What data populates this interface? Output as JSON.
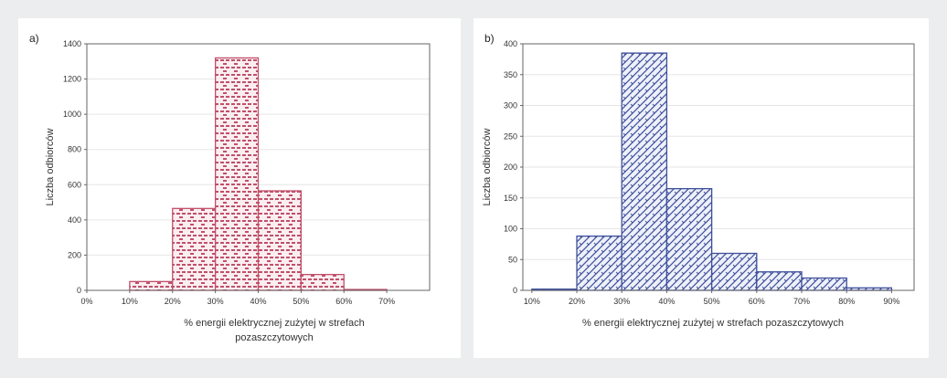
{
  "colors": {
    "background": "#ecedef",
    "pink_series": "#c0506a",
    "blue_series": "#3d4f9a"
  },
  "chart_data": [
    {
      "panel_label": "a)",
      "type": "bar",
      "categories": [
        "0-10%",
        "10-20%",
        "20-30%",
        "30-40%",
        "40-50%",
        "50-60%",
        "60-70%"
      ],
      "x_bins": [
        [
          0,
          10
        ],
        [
          10,
          20
        ],
        [
          20,
          30
        ],
        [
          30,
          40
        ],
        [
          40,
          50
        ],
        [
          50,
          60
        ],
        [
          60,
          70
        ]
      ],
      "values": [
        0,
        50,
        465,
        1320,
        565,
        90,
        5
      ],
      "xlabel": "% energii elektrycznej zużytej w strefach",
      "xlabel_line2": "pozaszczytowych",
      "ylabel": "Liczba odbiorców",
      "ylim": [
        0,
        1400
      ],
      "yticks": [
        0,
        200,
        400,
        600,
        800,
        1000,
        1200,
        1400
      ],
      "xticks": [
        0,
        10,
        20,
        30,
        40,
        50,
        60,
        70
      ],
      "xtick_labels": [
        "0%",
        "10%",
        "20%",
        "30%",
        "40%",
        "50%",
        "60%",
        "70%"
      ],
      "xlim": [
        0,
        80
      ],
      "grid": true,
      "color": "pink_series",
      "pattern": "bricks"
    },
    {
      "panel_label": "b)",
      "type": "bar",
      "categories": [
        "10-20%",
        "20-30%",
        "30-40%",
        "40-50%",
        "50-60%",
        "60-70%",
        "70-80%",
        "80-90%"
      ],
      "x_bins": [
        [
          10,
          20
        ],
        [
          20,
          30
        ],
        [
          30,
          40
        ],
        [
          40,
          50
        ],
        [
          50,
          60
        ],
        [
          60,
          70
        ],
        [
          70,
          80
        ],
        [
          80,
          90
        ]
      ],
      "values": [
        2,
        88,
        385,
        165,
        60,
        30,
        20,
        4
      ],
      "xlabel": "% energii elektrycznej zużytej w strefach pozaszczytowych",
      "xlabel_line2": "",
      "ylabel": "Liczba odbiorców",
      "ylim": [
        0,
        400
      ],
      "yticks": [
        0,
        50,
        100,
        150,
        200,
        250,
        300,
        350,
        400
      ],
      "xticks": [
        10,
        20,
        30,
        40,
        50,
        60,
        70,
        80,
        90
      ],
      "xtick_labels": [
        "10%",
        "20%",
        "30%",
        "40%",
        "50%",
        "60%",
        "70%",
        "80%",
        "90%"
      ],
      "xlim": [
        8,
        95
      ],
      "grid": true,
      "color": "blue_series",
      "pattern": "crosshatch"
    }
  ]
}
